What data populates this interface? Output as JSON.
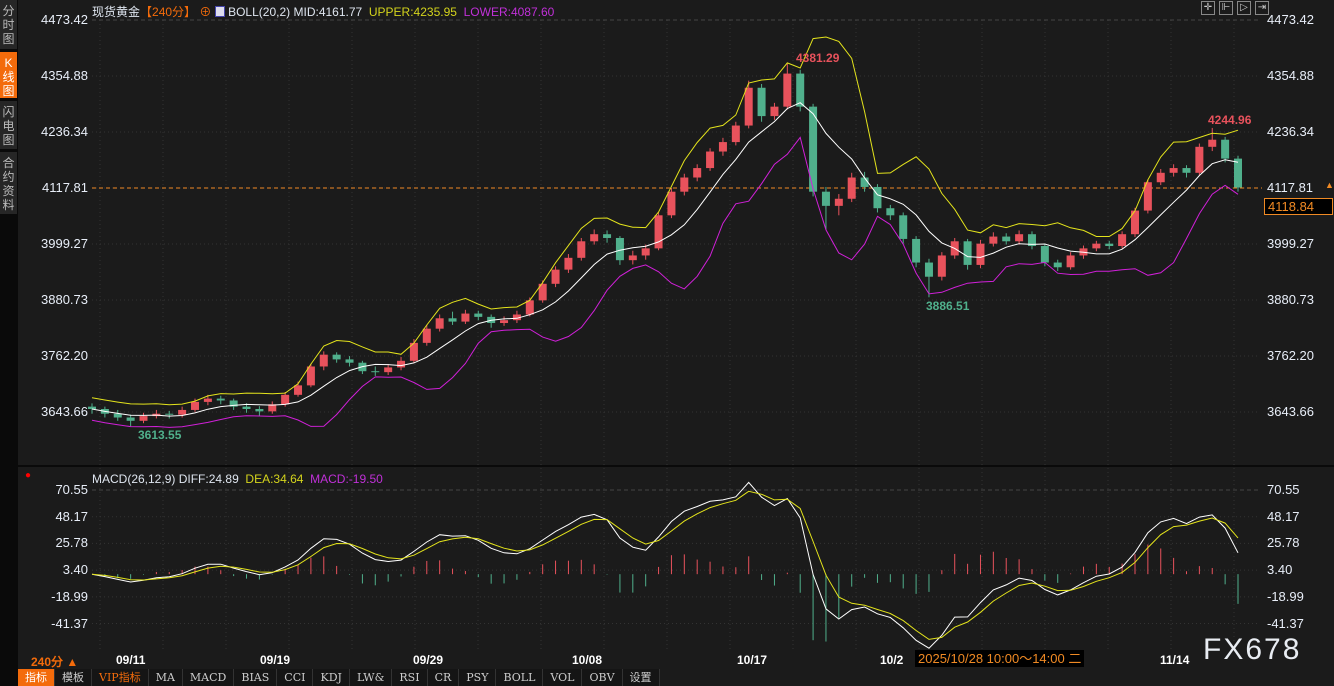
{
  "sidebar": {
    "tabs": [
      {
        "label": "分时图",
        "active": false
      },
      {
        "label": "K线图",
        "active": true
      },
      {
        "label": "闪电图",
        "active": false
      },
      {
        "label": "合约资料",
        "active": false
      }
    ]
  },
  "header": {
    "title": "现货黄金",
    "period": "【240分】",
    "indicator": "BOLL(20,2)",
    "mid": "MID:4161.77",
    "upper": "UPPER:4235.95",
    "lower": "LOWER:4087.60"
  },
  "macd_header": {
    "name": "MACD(26,12,9)",
    "diff": "DIFF:24.89",
    "dea": "DEA:34.64",
    "macd": "MACD:-19.50"
  },
  "toolbar_icons": [
    "crosshair-icon",
    "zoom-fit-icon",
    "play-icon",
    "scroll-end-icon"
  ],
  "price_axis": [
    "4473.42",
    "4354.88",
    "4236.34",
    "4117.81",
    "3999.27",
    "3880.73",
    "3762.20",
    "3643.66"
  ],
  "macd_axis": [
    "70.55",
    "48.17",
    "25.78",
    "3.40",
    "-18.99",
    "-41.37"
  ],
  "current_price": "4118.84",
  "period_selector": "240分 ▲",
  "tooltip": "2025/10/28 10:00～14:00 二",
  "watermark": "FX678",
  "bottom_toolbar": [
    "指标",
    "模板",
    "VIP指标",
    "MA",
    "MACD",
    "BIAS",
    "CCI",
    "KDJ",
    "LW&",
    "RSI",
    "CR",
    "PSY",
    "BOLL",
    "VOL",
    "OBV",
    "设置"
  ],
  "colors": {
    "up": "#e8525c",
    "down": "#50b08c",
    "boll_upper": "#e4e41c",
    "boll_mid": "#ffffff",
    "boll_lower": "#d020d8",
    "accent": "#f36b0b"
  },
  "chart_data": {
    "type": "candlestick",
    "x_labels": [
      "09/11",
      "09/19",
      "09/29",
      "10/08",
      "10/17",
      "10/2",
      "11/14"
    ],
    "ylim": [
      3580,
      4473.42
    ],
    "macd_ylim": [
      -60,
      70.55
    ],
    "annotations": [
      {
        "label": "4381.29",
        "kind": "high"
      },
      {
        "label": "3613.55",
        "kind": "low"
      },
      {
        "label": "3886.51",
        "kind": "low"
      },
      {
        "label": "4244.96",
        "kind": "high"
      }
    ],
    "ohlc": [
      [
        3655,
        3662,
        3640,
        3650
      ],
      [
        3650,
        3655,
        3632,
        3640
      ],
      [
        3640,
        3648,
        3625,
        3632
      ],
      [
        3632,
        3638,
        3613.55,
        3625
      ],
      [
        3625,
        3642,
        3620,
        3635
      ],
      [
        3635,
        3648,
        3630,
        3640
      ],
      [
        3640,
        3646,
        3630,
        3638
      ],
      [
        3638,
        3655,
        3632,
        3648
      ],
      [
        3648,
        3672,
        3644,
        3665
      ],
      [
        3665,
        3680,
        3658,
        3672
      ],
      [
        3672,
        3678,
        3660,
        3668
      ],
      [
        3668,
        3672,
        3648,
        3655
      ],
      [
        3655,
        3662,
        3642,
        3650
      ],
      [
        3650,
        3656,
        3636,
        3645
      ],
      [
        3645,
        3666,
        3640,
        3660
      ],
      [
        3660,
        3686,
        3655,
        3680
      ],
      [
        3680,
        3708,
        3676,
        3700
      ],
      [
        3700,
        3746,
        3696,
        3740
      ],
      [
        3740,
        3772,
        3732,
        3765
      ],
      [
        3765,
        3770,
        3748,
        3755
      ],
      [
        3755,
        3762,
        3740,
        3748
      ],
      [
        3748,
        3752,
        3724,
        3730
      ],
      [
        3730,
        3740,
        3720,
        3728
      ],
      [
        3728,
        3745,
        3722,
        3738
      ],
      [
        3738,
        3760,
        3732,
        3752
      ],
      [
        3752,
        3798,
        3748,
        3790
      ],
      [
        3790,
        3828,
        3784,
        3820
      ],
      [
        3820,
        3850,
        3814,
        3842
      ],
      [
        3842,
        3856,
        3828,
        3835
      ],
      [
        3835,
        3860,
        3830,
        3852
      ],
      [
        3852,
        3858,
        3838,
        3845
      ],
      [
        3845,
        3850,
        3822,
        3832
      ],
      [
        3832,
        3846,
        3826,
        3838
      ],
      [
        3838,
        3858,
        3832,
        3850
      ],
      [
        3850,
        3886,
        3846,
        3880
      ],
      [
        3880,
        3922,
        3875,
        3915
      ],
      [
        3915,
        3952,
        3908,
        3945
      ],
      [
        3945,
        3978,
        3938,
        3970
      ],
      [
        3970,
        4012,
        3964,
        4005
      ],
      [
        4005,
        4030,
        3998,
        4020
      ],
      [
        4020,
        4028,
        4002,
        4012
      ],
      [
        4012,
        4016,
        3955,
        3965
      ],
      [
        3965,
        3985,
        3956,
        3975
      ],
      [
        3975,
        3998,
        3966,
        3990
      ],
      [
        3990,
        4066,
        3986,
        4060
      ],
      [
        4060,
        4118,
        4054,
        4110
      ],
      [
        4110,
        4148,
        4102,
        4140
      ],
      [
        4140,
        4168,
        4132,
        4160
      ],
      [
        4160,
        4202,
        4154,
        4195
      ],
      [
        4195,
        4224,
        4186,
        4215
      ],
      [
        4215,
        4258,
        4208,
        4250
      ],
      [
        4250,
        4345,
        4244,
        4330
      ],
      [
        4330,
        4338,
        4258,
        4270
      ],
      [
        4270,
        4298,
        4262,
        4290
      ],
      [
        4290,
        4381.29,
        4284,
        4360
      ],
      [
        4360,
        4368,
        4280,
        4290
      ],
      [
        4290,
        4296,
        4100,
        4110
      ],
      [
        4110,
        4120,
        4030,
        4080
      ],
      [
        4080,
        4105,
        4060,
        4095
      ],
      [
        4095,
        4150,
        4088,
        4140
      ],
      [
        4140,
        4152,
        4110,
        4120
      ],
      [
        4120,
        4126,
        4066,
        4075
      ],
      [
        4075,
        4082,
        4050,
        4060
      ],
      [
        4060,
        4066,
        4000,
        4010
      ],
      [
        4010,
        4016,
        3950,
        3960
      ],
      [
        3960,
        3968,
        3886.51,
        3930
      ],
      [
        3930,
        3982,
        3922,
        3975
      ],
      [
        3975,
        4012,
        3968,
        4005
      ],
      [
        4005,
        4010,
        3945,
        3955
      ],
      [
        3955,
        4008,
        3948,
        4000
      ],
      [
        4000,
        4024,
        3994,
        4015
      ],
      [
        4015,
        4022,
        3998,
        4005
      ],
      [
        4005,
        4028,
        3998,
        4020
      ],
      [
        4020,
        4026,
        3988,
        3995
      ],
      [
        3995,
        4000,
        3952,
        3960
      ],
      [
        3960,
        3966,
        3942,
        3950
      ],
      [
        3950,
        3982,
        3945,
        3975
      ],
      [
        3975,
        3996,
        3968,
        3990
      ],
      [
        3990,
        4006,
        3984,
        4000
      ],
      [
        4000,
        4006,
        3988,
        3995
      ],
      [
        3995,
        4026,
        3990,
        4020
      ],
      [
        4020,
        4076,
        4014,
        4070
      ],
      [
        4070,
        4136,
        4064,
        4130
      ],
      [
        4130,
        4158,
        4124,
        4150
      ],
      [
        4150,
        4168,
        4142,
        4160
      ],
      [
        4160,
        4166,
        4140,
        4150
      ],
      [
        4150,
        4212,
        4145,
        4205
      ],
      [
        4205,
        4244.96,
        4196,
        4220
      ],
      [
        4220,
        4226,
        4172,
        4180
      ],
      [
        4180,
        4186,
        4110,
        4118.84
      ]
    ]
  }
}
